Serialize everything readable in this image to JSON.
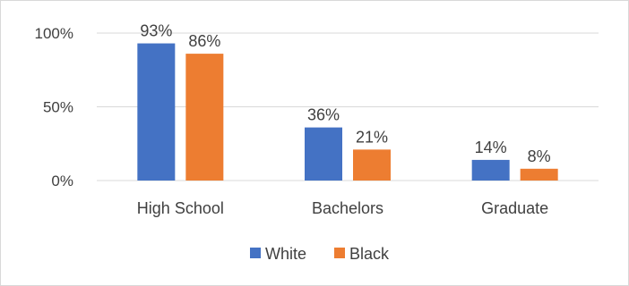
{
  "chart_data": {
    "type": "bar",
    "categories": [
      "High School",
      "Bachelors",
      "Graduate"
    ],
    "series": [
      {
        "name": "White",
        "values": [
          93,
          36,
          14
        ],
        "labels": [
          "93%",
          "36%",
          "14%"
        ],
        "color": "#4472C4"
      },
      {
        "name": "Black",
        "values": [
          86,
          21,
          8
        ],
        "labels": [
          "86%",
          "21%",
          "8%"
        ],
        "color": "#ED7D31"
      }
    ],
    "yticks": [
      {
        "value": 0,
        "label": "0%"
      },
      {
        "value": 50,
        "label": "50%"
      },
      {
        "value": 100,
        "label": "100%"
      }
    ],
    "ylim": [
      0,
      100
    ],
    "grid": true,
    "legend": "bottom",
    "title": "",
    "xlabel": "",
    "ylabel": ""
  }
}
